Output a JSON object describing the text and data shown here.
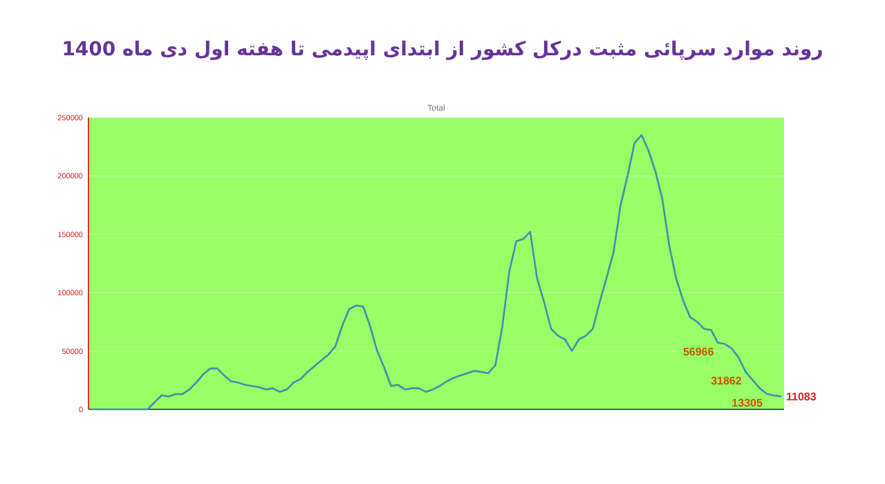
{
  "chart_data": {
    "type": "line",
    "title": "روند موارد سرپائی مثبت درکل کشور از ابتدای اپیدمی تا هفته اول دی ماه 1400",
    "subtitle": "Total",
    "categories": [
      null,
      null,
      null,
      null,
      null,
      null,
      null,
      null,
      null,
      null,
      null,
      null,
      null,
      null,
      null,
      null,
      null,
      null,
      null,
      null,
      null,
      null,
      null,
      null,
      null,
      null,
      null,
      null,
      null,
      null,
      null,
      null,
      null,
      null,
      null,
      null,
      null,
      null,
      null,
      null,
      null,
      null,
      null,
      null,
      null,
      null,
      null,
      null,
      null,
      null,
      null,
      null,
      null,
      null,
      null,
      null,
      null,
      null,
      null,
      null,
      null,
      null,
      null,
      null,
      null,
      null,
      null,
      null,
      null,
      null,
      null,
      null,
      null,
      null,
      null,
      null,
      null,
      null,
      null,
      null,
      null,
      null,
      null,
      null,
      null,
      null,
      null,
      null,
      null,
      null,
      null,
      null,
      null,
      null,
      null,
      null,
      null,
      null,
      null,
      null
    ],
    "values": [
      0,
      0,
      0,
      0,
      0,
      0,
      0,
      0,
      0,
      6000,
      12000,
      11000,
      13000,
      13000,
      17000,
      23000,
      30000,
      35000,
      35000,
      29000,
      24000,
      23000,
      21000,
      20000,
      19000,
      17000,
      18000,
      15000,
      17000,
      23000,
      26000,
      32000,
      37000,
      42000,
      47000,
      54000,
      72000,
      86000,
      89000,
      88000,
      71000,
      50000,
      36000,
      20000,
      21000,
      17000,
      18000,
      18000,
      15000,
      17000,
      20000,
      24000,
      27000,
      29000,
      31000,
      33000,
      32000,
      31000,
      38000,
      71000,
      118000,
      144000,
      146000,
      152000,
      112000,
      92000,
      69000,
      63000,
      60000,
      50000,
      60000,
      63000,
      69000,
      92000,
      113000,
      135000,
      175000,
      200000,
      228000,
      235000,
      222000,
      204000,
      180000,
      140000,
      112000,
      93000,
      79000,
      75000,
      69000,
      68000,
      56966,
      56000,
      52000,
      44000,
      31862,
      25000,
      18000,
      13305,
      12000,
      11083
    ],
    "value_labels": [
      null,
      null,
      null,
      null,
      null,
      null,
      null,
      null,
      null,
      null,
      null,
      null,
      null,
      null,
      null,
      null,
      null,
      null,
      null,
      null,
      null,
      null,
      null,
      null,
      null,
      null,
      null,
      null,
      null,
      null,
      null,
      null,
      null,
      null,
      null,
      null,
      null,
      null,
      null,
      null,
      null,
      null,
      null,
      null,
      null,
      null,
      null,
      null,
      null,
      null,
      null,
      null,
      null,
      null,
      null,
      null,
      null,
      null,
      null,
      null,
      null,
      null,
      null,
      null,
      null,
      null,
      null,
      null,
      null,
      null,
      null,
      null,
      null,
      null,
      null,
      null,
      null,
      null,
      null,
      null,
      null,
      null,
      null,
      null,
      null,
      null,
      null,
      null,
      null,
      null,
      "56966",
      null,
      null,
      null,
      "31862",
      null,
      null,
      "13305",
      null,
      "11083"
    ],
    "color": "#3f8fb0",
    "ylim": [
      0,
      250000
    ],
    "yticks": [
      0,
      50000,
      100000,
      150000,
      200000,
      250000
    ],
    "grid": "y",
    "line_style": "solid"
  }
}
